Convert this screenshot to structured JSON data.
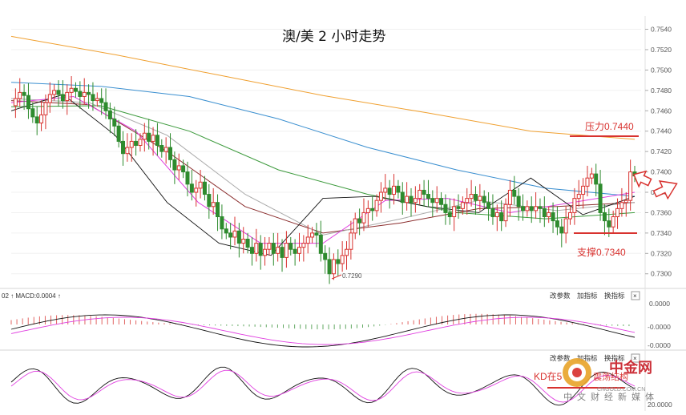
{
  "chart": {
    "title": "澳/美 2 小时走势",
    "resistance_label": "压力0.7440",
    "support_label": "支撑0.7340",
    "low_label": "0.7290"
  },
  "macd_panel": {
    "label": "02 ↑ MACD:0.0004 ↑",
    "ticks": [
      "0.0000",
      "-0.0000",
      "-0.0000"
    ]
  },
  "kd_panel": {
    "ticks": [
      "20.0000"
    ],
    "overlay_text": "KD在5"
  },
  "controls": {
    "params": "改参数",
    "add_indicator": "加指标",
    "swap_indicator": "换指标",
    "close": "×"
  },
  "watermark": {
    "brand": "中金网",
    "domain": "CNGOLD.COM.CN",
    "slogan": "中文财经新媒体",
    "overlay_text": "震荡结构"
  },
  "colors": {
    "up": "#d8322f",
    "down": "#2e8b2e",
    "ma_orange": "#f0a030",
    "ma_blue": "#3a8fd0",
    "ma_green": "#3c9a3c",
    "ma_brown": "#8b2e2e",
    "ma_magenta": "#e040e0",
    "ma_gray": "#aaaaaa",
    "annotation": "#d8322f"
  },
  "chart_data": {
    "type": "candlestick",
    "title": "澳/美 2 小时走势",
    "y_ticks": [
      0.754,
      0.752,
      0.75,
      0.748,
      0.746,
      0.744,
      0.742,
      0.74,
      0.738,
      0.736,
      0.734,
      0.732,
      0.73
    ],
    "y_tick_labels": [
      "0.7540",
      "0.7520",
      "0.7500",
      "0.7480",
      "0.7460",
      "0.7440",
      "0.7420",
      "0.7400",
      "0.7380",
      "0.7360",
      "0.7340",
      "0.7320",
      "0.7300"
    ],
    "ylim": [
      0.7288,
      0.7553
    ],
    "resistance": 0.744,
    "support": 0.734,
    "annotated_low": 0.729,
    "close_path": [
      0.7465,
      0.7472,
      0.7478,
      0.7475,
      0.7462,
      0.7454,
      0.7448,
      0.7456,
      0.7468,
      0.7476,
      0.748,
      0.7476,
      0.747,
      0.7478,
      0.7482,
      0.7479,
      0.7474,
      0.7478,
      0.7476,
      0.747,
      0.7472,
      0.7468,
      0.746,
      0.7452,
      0.7445,
      0.743,
      0.7418,
      0.7424,
      0.743,
      0.7426,
      0.7432,
      0.7438,
      0.743,
      0.7436,
      0.7426,
      0.742,
      0.7424,
      0.7412,
      0.7402,
      0.7406,
      0.74,
      0.7388,
      0.738,
      0.7384,
      0.739,
      0.7378,
      0.7366,
      0.737,
      0.7356,
      0.7344,
      0.734,
      0.7336,
      0.7342,
      0.733,
      0.7334,
      0.7326,
      0.732,
      0.733,
      0.7318,
      0.7324,
      0.733,
      0.732,
      0.7326,
      0.7316,
      0.733,
      0.7324,
      0.732,
      0.7326,
      0.733,
      0.7336,
      0.734,
      0.7338,
      0.732,
      0.7314,
      0.73,
      0.7314,
      0.731,
      0.7318,
      0.7324,
      0.734,
      0.7354,
      0.735,
      0.736,
      0.7364,
      0.7362,
      0.7372,
      0.738,
      0.7384,
      0.7378,
      0.7386,
      0.738,
      0.737,
      0.7376,
      0.737,
      0.7374,
      0.7382,
      0.7378,
      0.7374,
      0.737,
      0.7374,
      0.7368,
      0.736,
      0.7356,
      0.7366,
      0.7364,
      0.737,
      0.7374,
      0.7378,
      0.7372,
      0.7376,
      0.737,
      0.7364,
      0.7356,
      0.736,
      0.7352,
      0.7368,
      0.7382,
      0.7376,
      0.7366,
      0.7362,
      0.7366,
      0.7362,
      0.7366,
      0.7364,
      0.7356,
      0.736,
      0.7352,
      0.7346,
      0.734,
      0.7354,
      0.736,
      0.7374,
      0.7378,
      0.7386,
      0.7394,
      0.7398,
      0.7388,
      0.736,
      0.7352,
      0.7346,
      0.7356,
      0.7364,
      0.737,
      0.7372,
      0.74,
      0.7396
    ],
    "moving_averages": [
      {
        "color": "#f0a030",
        "values": [
          0.7533,
          0.7515,
          0.7495,
          0.7475,
          0.7458,
          0.744,
          0.7432
        ]
      },
      {
        "color": "#3a8fd0",
        "values": [
          0.7488,
          0.7484,
          0.7474,
          0.7452,
          0.7424,
          0.7402,
          0.7384,
          0.7376
        ]
      },
      {
        "color": "#3c9a3c",
        "values": [
          0.7464,
          0.7465,
          0.744,
          0.7402,
          0.7378,
          0.736,
          0.7354,
          0.736
        ]
      },
      {
        "color": "#8b2e2e",
        "values": [
          0.747,
          0.7466,
          0.742,
          0.7366,
          0.734,
          0.735,
          0.7364,
          0.7366,
          0.737
        ]
      },
      {
        "color": "#aaaaaa",
        "values": [
          0.7472,
          0.7468,
          0.7436,
          0.7378,
          0.7338,
          0.7354,
          0.7372,
          0.7362,
          0.737
        ]
      },
      {
        "color": "#e040e0",
        "values": [
          0.7468,
          0.7474,
          0.744,
          0.737,
          0.733,
          0.733,
          0.7372,
          0.7374,
          0.736,
          0.737,
          0.738
        ]
      },
      {
        "color": "#111111",
        "values": [
          0.746,
          0.7476,
          0.7436,
          0.737,
          0.733,
          0.7318,
          0.7374,
          0.7376,
          0.7366,
          0.736,
          0.7394,
          0.7358,
          0.7376
        ]
      }
    ]
  }
}
